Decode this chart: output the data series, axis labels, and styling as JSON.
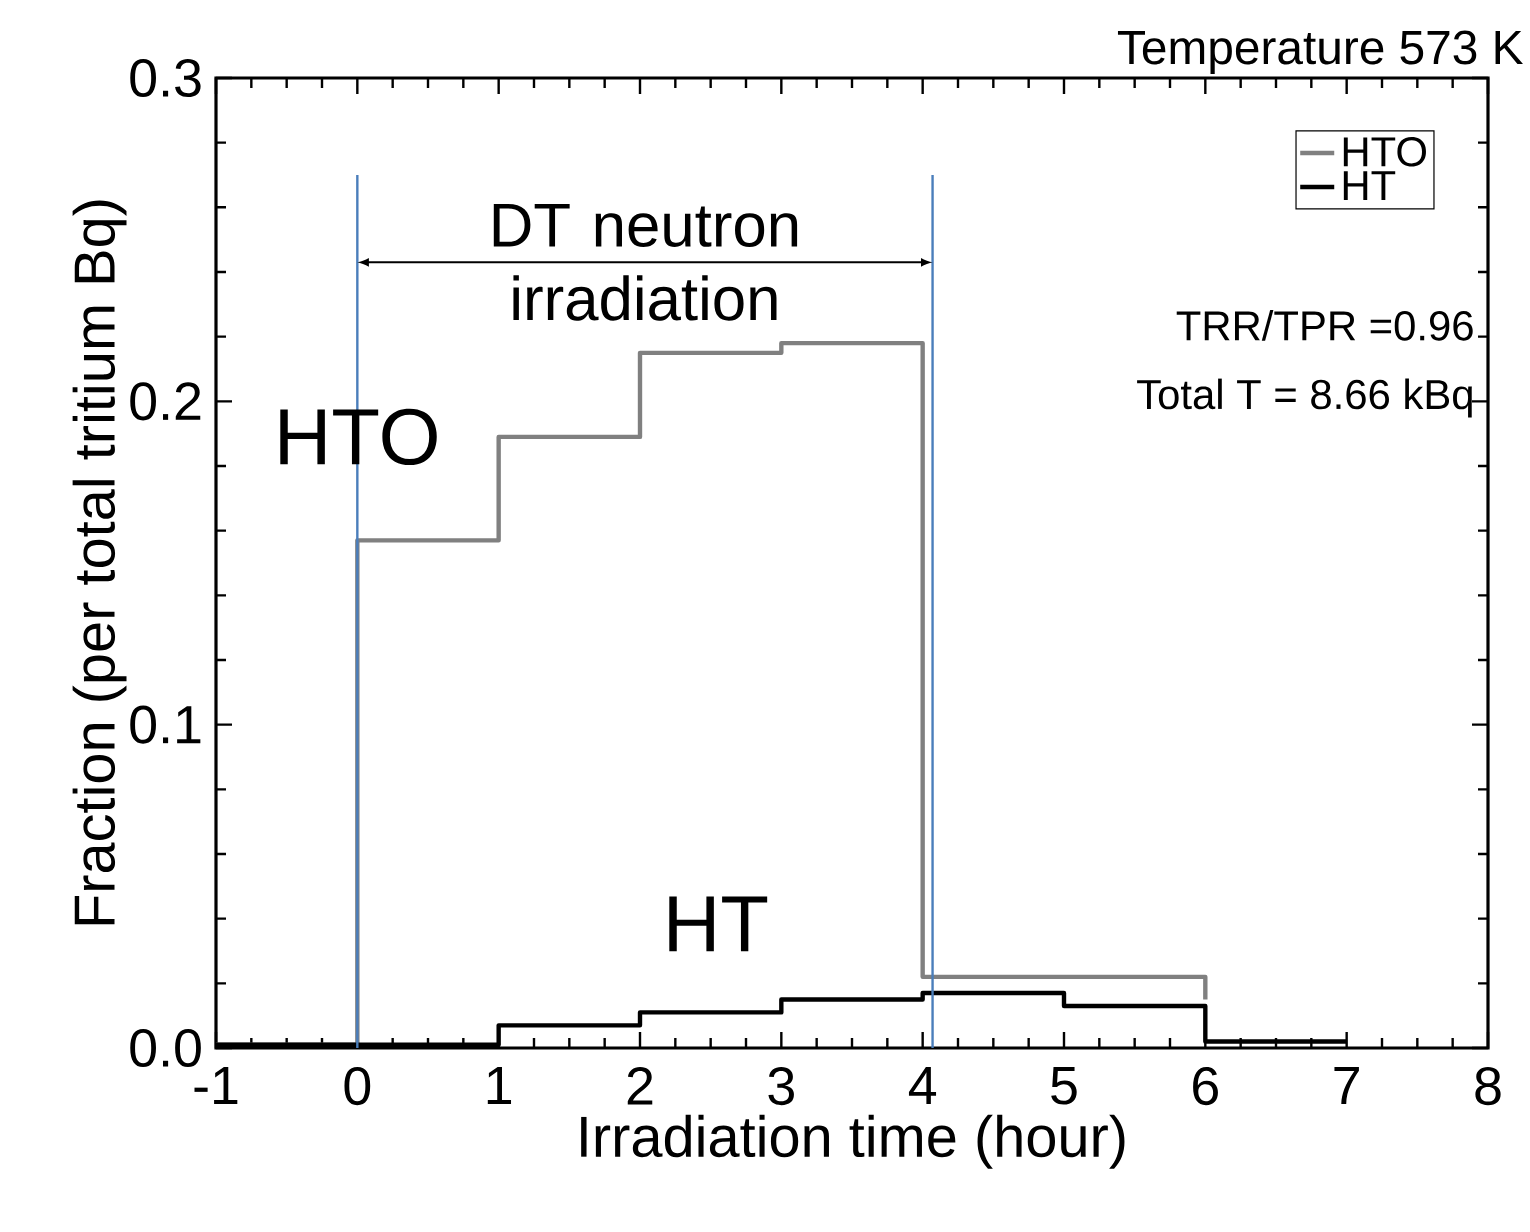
{
  "chart_data": {
    "type": "step",
    "title": "Temperature 573 K",
    "xlabel": "Irradiation time (hour)",
    "ylabel": "Fraction (per total tritium Bq)",
    "series": [
      {
        "name": "HTO",
        "color": "#808080",
        "x": [
          -1,
          0,
          1,
          2,
          3,
          4,
          5,
          6
        ],
        "values": [
          0.001,
          0.157,
          0.189,
          0.215,
          0.218,
          0.022,
          0.022,
          0.015
        ]
      },
      {
        "name": "HT",
        "color": "#000000",
        "x": [
          -1,
          0,
          1,
          2,
          3,
          4,
          5,
          6,
          7
        ],
        "values": [
          0.001,
          0.001,
          0.007,
          0.011,
          0.015,
          0.017,
          0.013,
          0.002,
          0.002
        ]
      }
    ],
    "xlim": [
      -1,
      8
    ],
    "xticks": [
      -1,
      0,
      1,
      2,
      3,
      4,
      5,
      6,
      7,
      8
    ],
    "ylim": [
      0,
      0.3
    ],
    "yticks": [
      {
        "value": 0,
        "label": "0.0"
      },
      0.1,
      0.2,
      0.3
    ],
    "ref_lines": [
      {
        "axis": "x",
        "value": 0,
        "color": "#4a7ebb"
      },
      {
        "axis": "x",
        "value": 4.07,
        "color": "#4a7ebb"
      }
    ],
    "legend": "top right",
    "annotations": [
      "DT neutron irradiation",
      "HTO",
      "HT",
      "TRR/TPR =0.96",
      "Total T = 8.66 kBq"
    ]
  }
}
